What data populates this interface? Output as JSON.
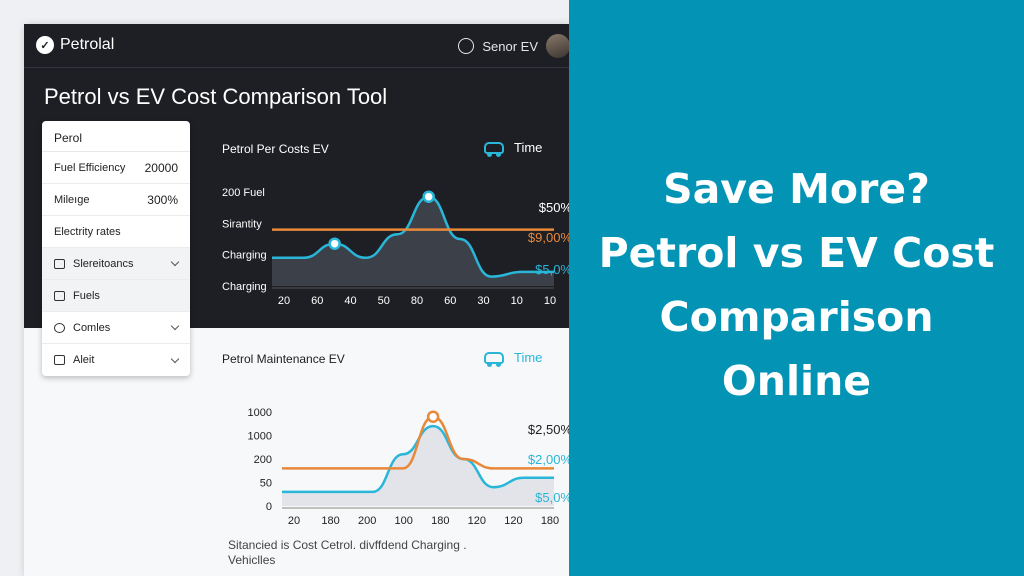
{
  "app": {
    "brand": "Petrolal",
    "user_name": "Senor EV",
    "page_title": "Petrol vs EV Cost Comparison Tool"
  },
  "panel": {
    "header": "Perol",
    "rows": [
      {
        "label": "Fuel Efficiency",
        "value": "20000",
        "icon": "",
        "chevron": false
      },
      {
        "label": "Mileıge",
        "value": "300%",
        "icon": "",
        "chevron": false
      },
      {
        "label": "Electrity rates",
        "value": "",
        "icon": "",
        "chevron": false
      },
      {
        "label": "Slereitoancs",
        "value": "",
        "icon": "plug-icon",
        "chevron": true
      },
      {
        "label": "Fuels",
        "value": "",
        "icon": "fuel-icon",
        "chevron": false
      },
      {
        "label": "Comles",
        "value": "",
        "icon": "circle-icon",
        "chevron": true
      },
      {
        "label": "Aleit",
        "value": "",
        "icon": "alert-icon",
        "chevron": true
      }
    ]
  },
  "chart1": {
    "title": "Petrol Per Costs EV",
    "time_label": "Time",
    "icon": "car-icon",
    "colors": {
      "ev": "#29b6d8",
      "petrol": "#e8893a"
    },
    "chart_data": {
      "type": "line",
      "row_labels": [
        "200 Fuel",
        "Sirantity",
        "Charging",
        "Charging"
      ],
      "x_ticks": [
        "20",
        "60",
        "40",
        "50",
        "80",
        "60",
        "30",
        "10",
        "10"
      ],
      "end_labels": [
        "$50%",
        "$9,00%",
        "$5,0%"
      ],
      "series": [
        {
          "values": [
            0.3,
            0.3,
            0.45,
            0.3,
            0.55,
            0.95,
            0.5,
            0.1,
            0.15,
            0.15
          ]
        },
        {
          "values": [
            0.6,
            0.6,
            0.6,
            0.6,
            0.6,
            0.6,
            0.6,
            0.6,
            0.6,
            0.6
          ]
        }
      ]
    }
  },
  "chart2": {
    "title": "Petrol Maintenance EV",
    "time_label": "Time",
    "icon": "car-icon",
    "chart_data": {
      "type": "line",
      "y_ticks": [
        "1000",
        "1000",
        "200",
        "50",
        "0"
      ],
      "x_ticks": [
        "20",
        "180",
        "200",
        "100",
        "180",
        "120",
        "120",
        "180"
      ],
      "end_labels": [
        "$2,50%",
        "$2,00%",
        "$5,0%"
      ],
      "series": [
        {
          "values": [
            0.15,
            0.15,
            0.15,
            0.15,
            0.55,
            0.85,
            0.5,
            0.2,
            0.3,
            0.3
          ]
        },
        {
          "values": [
            0.4,
            0.4,
            0.4,
            0.4,
            0.4,
            0.95,
            0.5,
            0.4,
            0.4,
            0.4
          ]
        }
      ]
    }
  },
  "caption": "Sitancied is Cost Cetrol. divffdend Charging . Vehiclles",
  "promo": {
    "lines": [
      "Save More?",
      "Petrol vs EV Cost",
      "Comparison",
      "Online"
    ]
  }
}
